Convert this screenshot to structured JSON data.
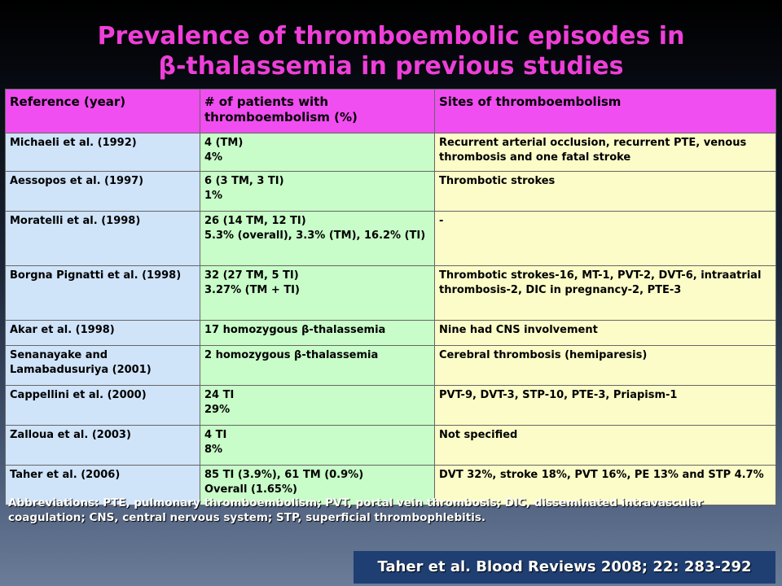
{
  "title": {
    "line1": "Prevalence of thromboembolic episodes in",
    "line2": "β-thalassemia in previous studies"
  },
  "table": {
    "headers": [
      "Reference (year)",
      "# of patients with thromboembolism (%)",
      "Sites of thromboembolism"
    ],
    "rows": [
      {
        "ref": "Michaeli et al. (1992)",
        "patients": [
          "4 (TM)",
          "4%"
        ],
        "sites": "Recurrent arterial occlusion, recurrent PTE, venous thrombosis and one fatal stroke"
      },
      {
        "ref": "Aessopos et al. (1997)",
        "patients": [
          "6 (3 TM, 3 TI)",
          "1%"
        ],
        "sites": "Thrombotic strokes"
      },
      {
        "ref": "Moratelli et al. (1998)",
        "patients": [
          "26 (14 TM, 12 TI)",
          "5.3% (overall), 3.3% (TM), 16.2% (TI)"
        ],
        "sites": "-"
      },
      {
        "ref": "Borgna Pignatti et al. (1998)",
        "patients": [
          "32 (27 TM, 5 TI)",
          "3.27% (TM + TI)"
        ],
        "sites": "Thrombotic strokes-16, MT-1, PVT-2, DVT-6, intraatrial thrombosis-2, DIC in pregnancy-2, PTE-3"
      },
      {
        "ref": "Akar et al. (1998)",
        "patients": [
          "17 homozygous β-thalassemia"
        ],
        "sites": "Nine had CNS involvement"
      },
      {
        "ref": "Senanayake and Lamabadusuriya (2001)",
        "patients": [
          "2 homozygous β-thalassemia"
        ],
        "sites": "Cerebral thrombosis (hemiparesis)"
      },
      {
        "ref": "Cappellini et al. (2000)",
        "patients": [
          "24 TI",
          "29%"
        ],
        "sites": "PVT-9, DVT-3, STP-10, PTE-3, Priapism-1"
      },
      {
        "ref": "Zalloua et al. (2003)",
        "patients": [
          "4 TI",
          "8%"
        ],
        "sites": "Not specified"
      },
      {
        "ref": "Taher et al. (2006)",
        "patients": [
          "85 TI (3.9%), 61 TM (0.9%)",
          "Overall (1.65%)"
        ],
        "sites": "DVT 32%, stroke 18%, PVT 16%, PE 13% and STP 4.7%"
      }
    ]
  },
  "abbreviations": "Abbreviations: PTE, pulmonary thromboembolism; PVT, portal vein thrombosis; DIC, disseminated intravascular coagulation; CNS, central nervous system; STP, superficial thrombophlebitis.",
  "citation": "Taher et al. Blood Reviews 2008; 22: 283-292",
  "colors": {
    "title": "#ee3fd8",
    "header_bg": "#f04ef0",
    "col1_bg": "#cfe3f9",
    "col2_bg": "#c8fcc8",
    "col3_bg": "#fcfcc8",
    "citation_bg": "#1f3f73"
  }
}
